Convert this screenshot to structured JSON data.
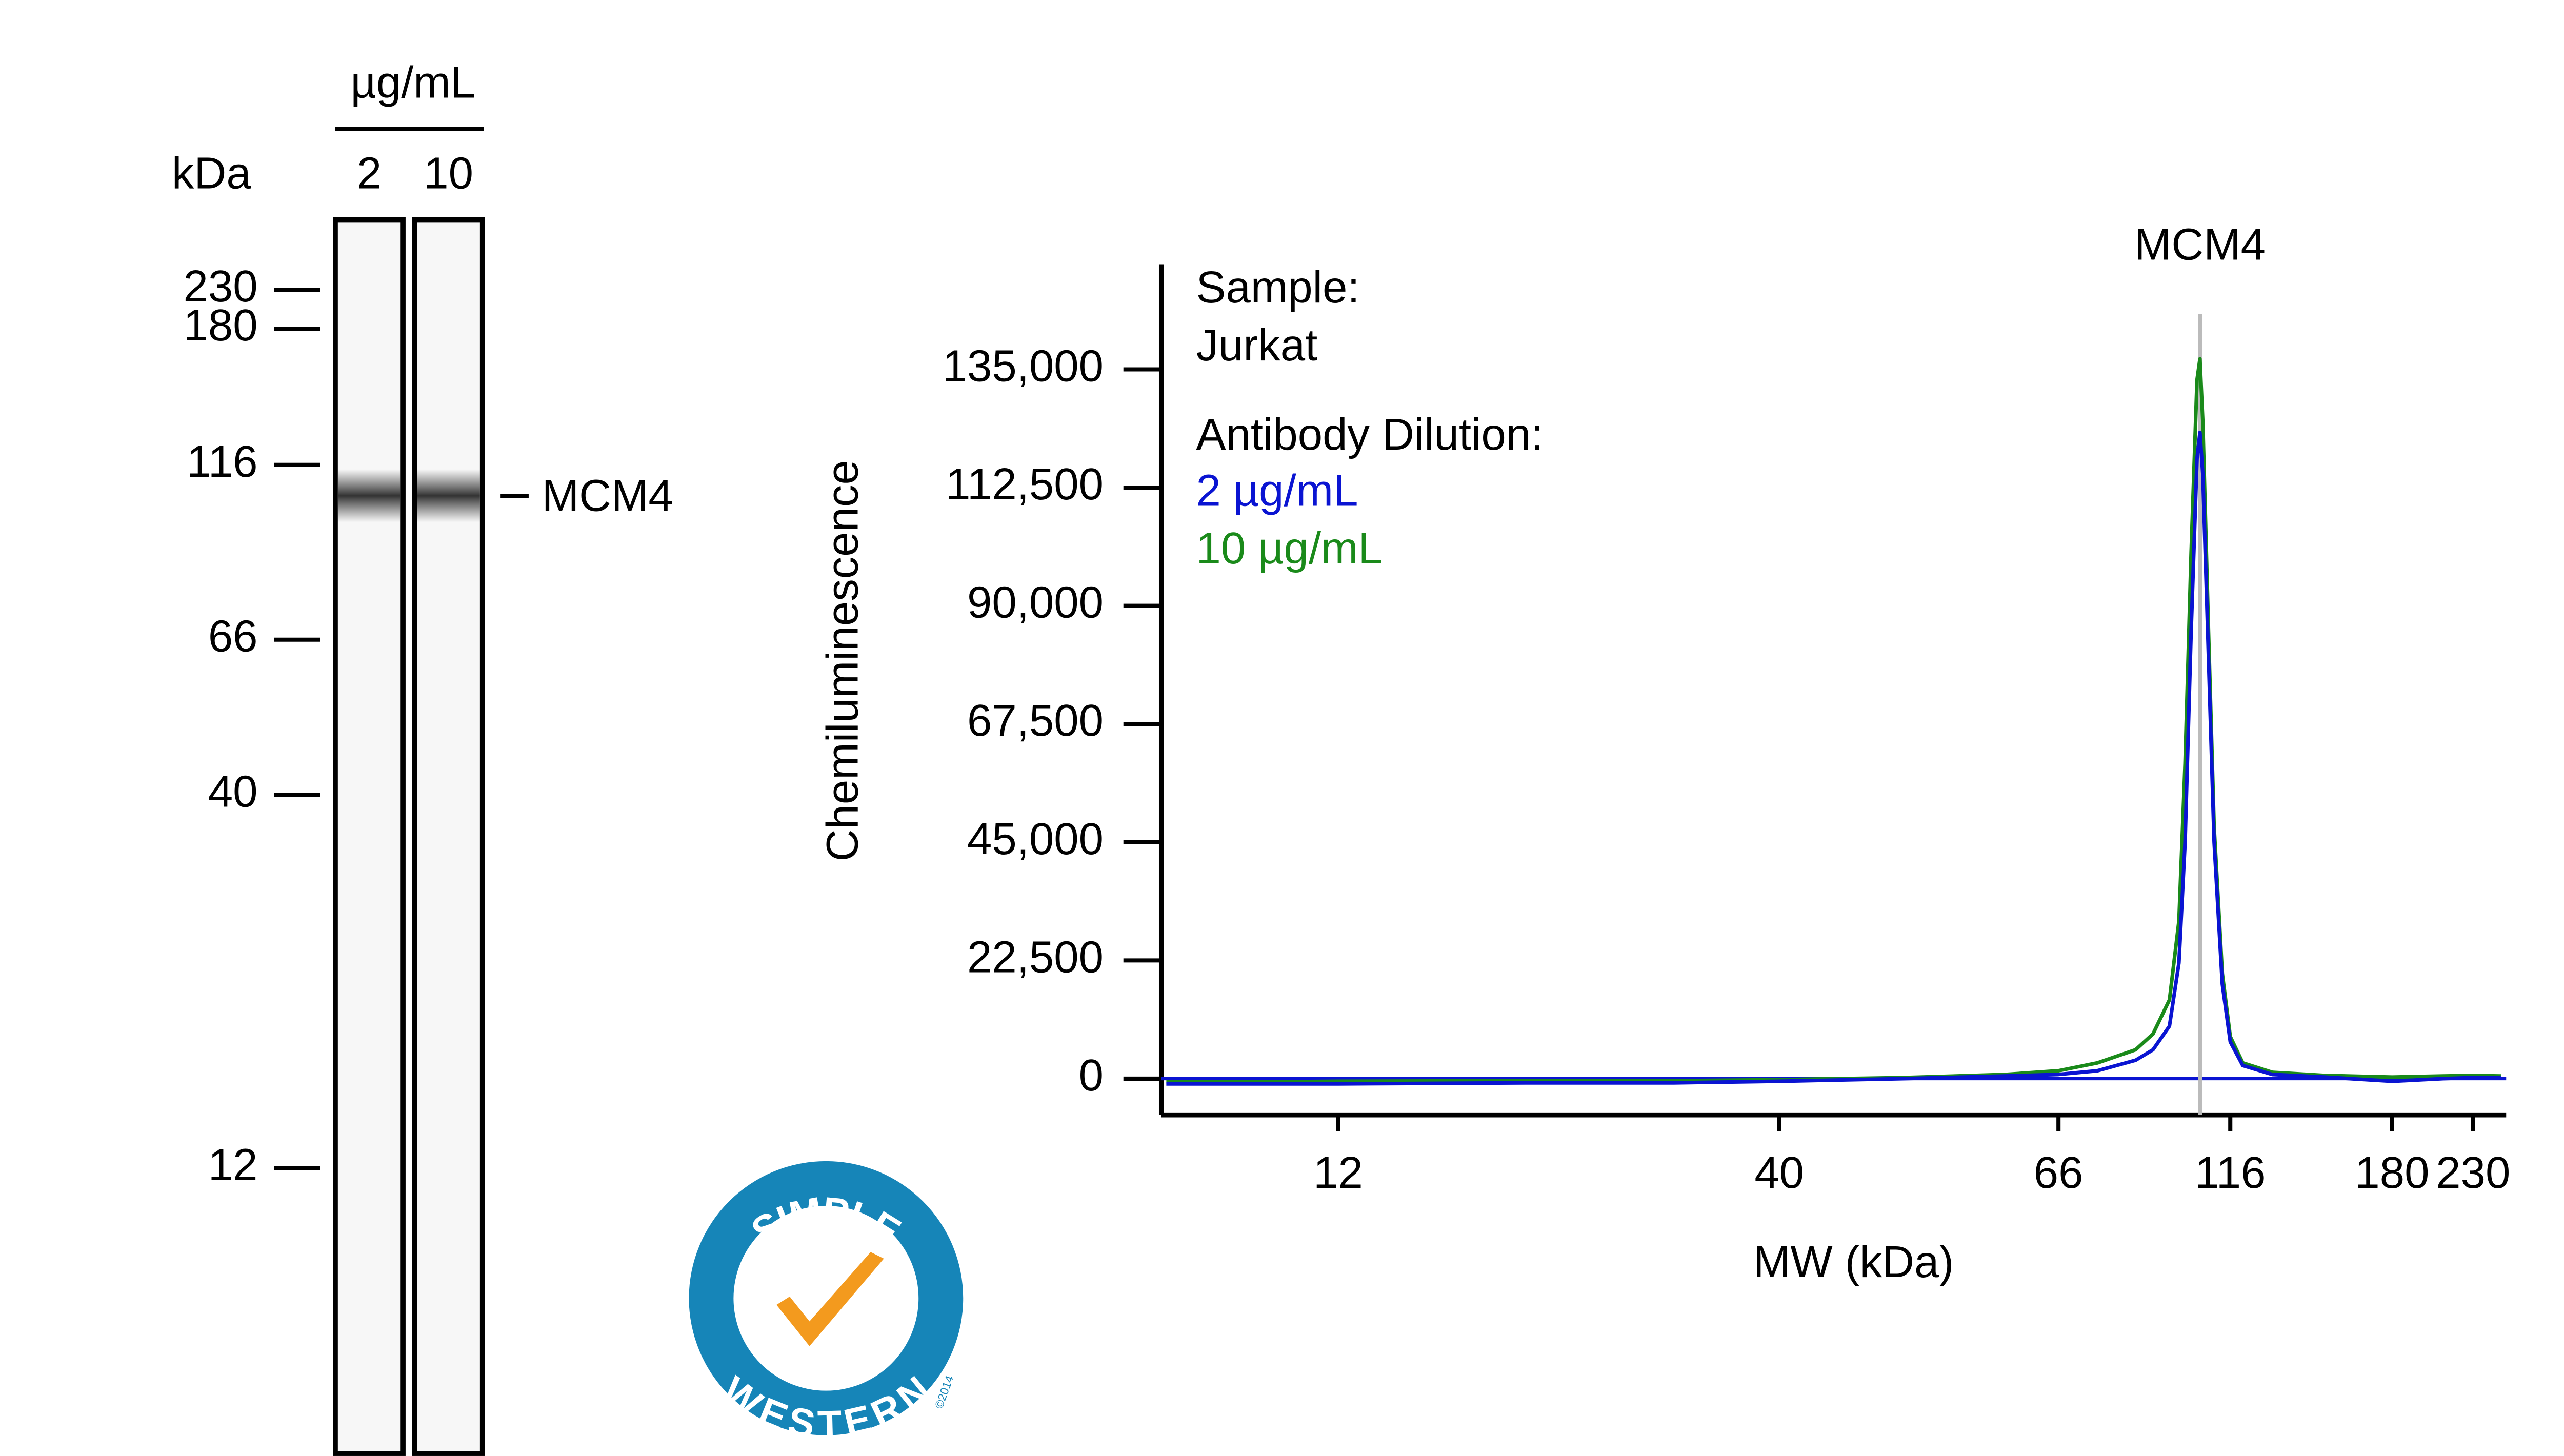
{
  "gel": {
    "unit_label": "µg/mL",
    "mw_label": "kDa",
    "lanes": [
      "2",
      "10"
    ],
    "markers": [
      230,
      180,
      116,
      66,
      40,
      12
    ],
    "band": {
      "label": "MCM4",
      "mw": 105
    }
  },
  "chart_data": {
    "type": "line",
    "x_label": "MW (kDa)",
    "y_label": "Chemiluminescence",
    "sample_label": "Sample:",
    "sample": "Jurkat",
    "legend_title": "Antibody Dilution:",
    "x": [
      7.5,
      10,
      12,
      20,
      30,
      40,
      50,
      60,
      66,
      75,
      85,
      90,
      95,
      98,
      100,
      102,
      104,
      105,
      106,
      108,
      110,
      113,
      116,
      120,
      130,
      150,
      180,
      210,
      230,
      250
    ],
    "series": [
      {
        "name": "2 µg/mL",
        "color": "#0a14d2",
        "values": [
          -1000,
          -1000,
          -1000,
          -800,
          -800,
          -500,
          0,
          500,
          800,
          1500,
          3500,
          5500,
          10000,
          22000,
          45000,
          85000,
          118000,
          123000,
          115000,
          80000,
          45000,
          18000,
          7000,
          2500,
          800,
          300,
          -500,
          0,
          200,
          200
        ]
      },
      {
        "name": "10 µg/mL",
        "color": "#1a8a1a",
        "values": [
          -600,
          -600,
          -500,
          -400,
          -400,
          -200,
          200,
          800,
          1500,
          3000,
          5500,
          8500,
          15000,
          30000,
          60000,
          100000,
          133000,
          137000,
          125000,
          85000,
          48000,
          20000,
          8000,
          3000,
          1200,
          600,
          300,
          500,
          600,
          500
        ]
      }
    ],
    "xlim": [
      7.4,
      254
    ],
    "xticks": [
      12,
      40,
      66,
      116,
      180,
      230
    ],
    "ylim": [
      -6900,
      155000
    ],
    "yticks": [
      0,
      {
        "value": 22500,
        "label": "22,500"
      },
      {
        "value": 45000,
        "label": "45,000"
      },
      {
        "value": 67500,
        "label": "67,500"
      },
      {
        "value": 90000,
        "label": "90,000"
      },
      {
        "value": 112500,
        "label": "112,500"
      },
      {
        "value": 135000,
        "label": "135,000"
      }
    ],
    "annotation": {
      "text": "MCM4",
      "x": 105
    }
  },
  "logo": {
    "top": "SIMPLE",
    "bottom": "WESTERN",
    "copyright": "©2014"
  }
}
